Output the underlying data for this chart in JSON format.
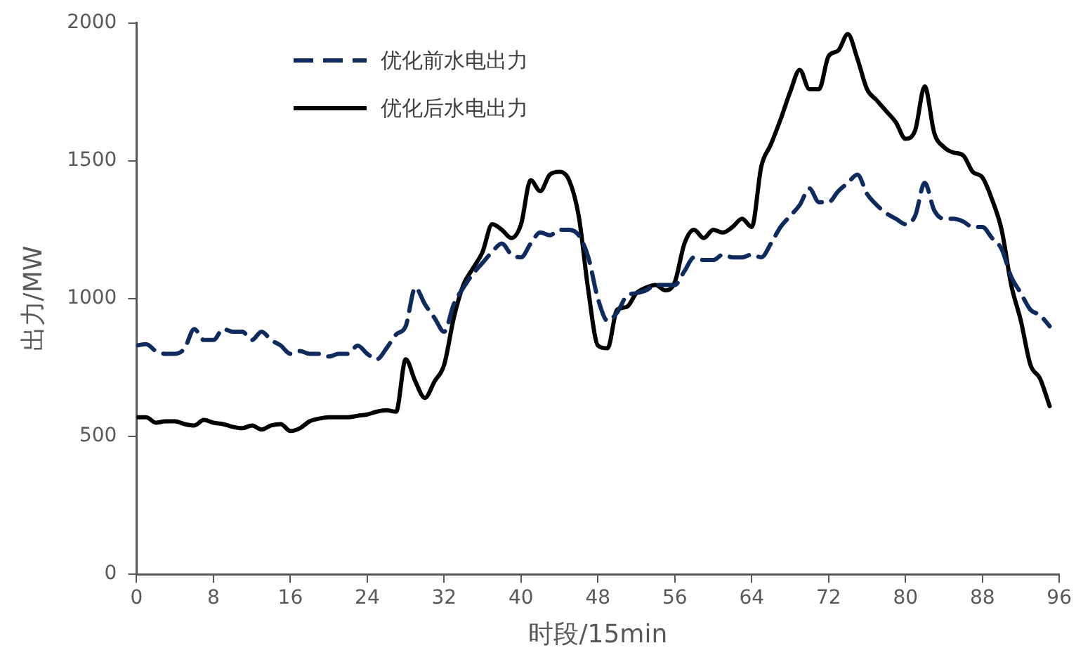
{
  "chart_data": {
    "type": "line",
    "xlabel": "时段/15min",
    "ylabel": "出力/MW",
    "xlim": [
      0,
      96
    ],
    "xticks": [
      0,
      8,
      16,
      24,
      32,
      40,
      48,
      56,
      64,
      72,
      80,
      88,
      96
    ],
    "ylim": [
      0,
      2000
    ],
    "yticks": [
      0,
      500,
      1000,
      1500,
      2000
    ],
    "grid": false,
    "legend": "top left",
    "marker": "none",
    "x": [
      0,
      1,
      2,
      3,
      4,
      5,
      6,
      7,
      8,
      9,
      10,
      11,
      12,
      13,
      14,
      15,
      16,
      17,
      18,
      19,
      20,
      21,
      22,
      23,
      24,
      25,
      26,
      27,
      28,
      29,
      30,
      31,
      32,
      33,
      34,
      35,
      36,
      37,
      38,
      39,
      40,
      41,
      42,
      43,
      44,
      45,
      46,
      47,
      48,
      49,
      50,
      51,
      52,
      53,
      54,
      55,
      56,
      57,
      58,
      59,
      60,
      61,
      62,
      63,
      64,
      65,
      66,
      67,
      68,
      69,
      70,
      71,
      72,
      73,
      74,
      75,
      76,
      77,
      78,
      79,
      80,
      81,
      82,
      83,
      84,
      85,
      86,
      87,
      88,
      89,
      90,
      91,
      92,
      93,
      94,
      95
    ],
    "series": [
      {
        "name": "优化前水电出力",
        "color": "#0e2a5e",
        "line_style": "dashed",
        "values": [
          830,
          835,
          810,
          800,
          800,
          820,
          890,
          850,
          850,
          890,
          880,
          880,
          850,
          880,
          850,
          830,
          800,
          810,
          800,
          800,
          790,
          800,
          800,
          830,
          800,
          780,
          820,
          870,
          900,
          1040,
          980,
          930,
          880,
          980,
          1040,
          1090,
          1130,
          1170,
          1200,
          1160,
          1150,
          1200,
          1240,
          1230,
          1250,
          1250,
          1230,
          1150,
          1000,
          920,
          950,
          1010,
          1020,
          1030,
          1050,
          1050,
          1050,
          1100,
          1150,
          1140,
          1140,
          1160,
          1150,
          1150,
          1160,
          1150,
          1200,
          1260,
          1300,
          1340,
          1400,
          1350,
          1350,
          1390,
          1420,
          1450,
          1380,
          1340,
          1310,
          1290,
          1270,
          1300,
          1420,
          1320,
          1290,
          1290,
          1280,
          1260,
          1260,
          1220,
          1180,
          1080,
          1020,
          960,
          940,
          900
        ]
      },
      {
        "name": "优化后水电出力",
        "color": "#000000",
        "line_style": "solid",
        "values": [
          570,
          570,
          550,
          555,
          555,
          545,
          540,
          560,
          550,
          545,
          535,
          530,
          540,
          525,
          540,
          545,
          520,
          530,
          555,
          565,
          570,
          570,
          570,
          575,
          580,
          590,
          595,
          590,
          780,
          700,
          640,
          700,
          760,
          930,
          1050,
          1110,
          1170,
          1270,
          1250,
          1220,
          1270,
          1430,
          1390,
          1450,
          1460,
          1430,
          1300,
          1030,
          830,
          820,
          960,
          970,
          1020,
          1040,
          1050,
          1030,
          1060,
          1200,
          1250,
          1220,
          1250,
          1240,
          1260,
          1290,
          1260,
          1480,
          1560,
          1650,
          1750,
          1830,
          1760,
          1760,
          1880,
          1900,
          1960,
          1870,
          1760,
          1720,
          1680,
          1640,
          1580,
          1610,
          1770,
          1600,
          1550,
          1530,
          1520,
          1460,
          1440,
          1360,
          1250,
          1050,
          920,
          760,
          710,
          610
        ]
      }
    ]
  }
}
